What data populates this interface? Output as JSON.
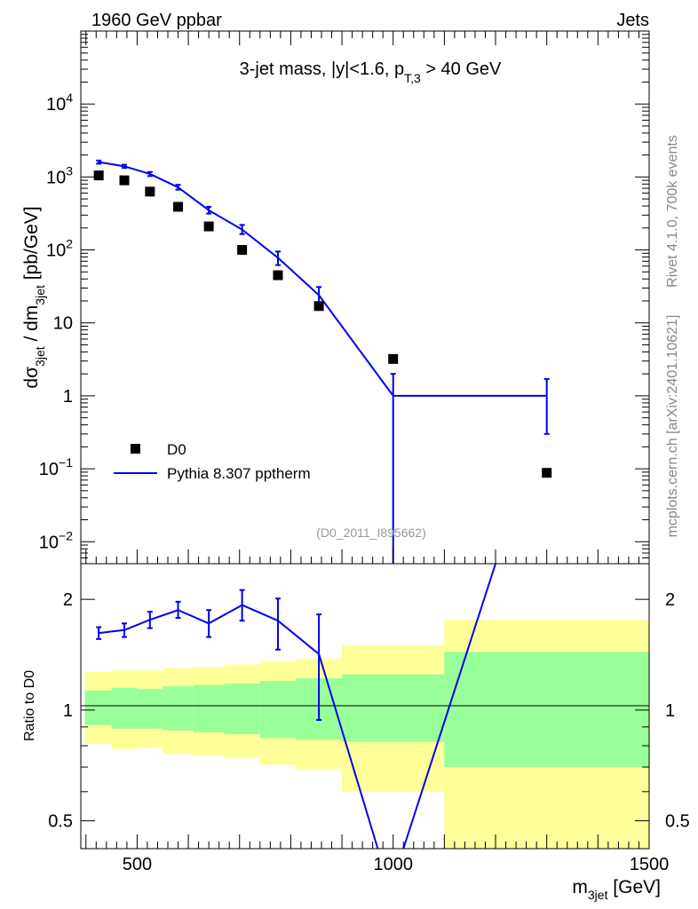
{
  "header": {
    "left": "1960 GeV ppbar",
    "right": "Jets"
  },
  "side_labels": {
    "rivet": "Rivet 4.1.0,  700k events",
    "mcplots": "mcplots.cern.ch [arXiv:2401.10621]"
  },
  "watermark": "(D0_2011_I895662)",
  "chart_data": [
    {
      "type": "scatter",
      "panel": "main",
      "title": "3-jet mass, |y|<1.6, p_T,3 > 40 GeV",
      "title_parts": {
        "prefix": "3-jet mass, |y|<1.6, p",
        "sub": "T,3",
        "suffix": " > 40 GeV"
      },
      "ylabel": "dσ_3jet / dm_3jet [pb/GeV]",
      "ylabel_parts": {
        "d1": "dσ",
        "s1": "3jet",
        "mid": " / dm",
        "s2": "3jet",
        "unit": " [pb/GeV]"
      },
      "yscale": "log",
      "ylim": [
        0.005,
        100000
      ],
      "xlim": [
        390,
        1500
      ],
      "y_ticks": [
        {
          "v": 0.01,
          "base": "10",
          "exp": "−2"
        },
        {
          "v": 0.1,
          "base": "10",
          "exp": "−1"
        },
        {
          "v": 1,
          "base": "1",
          "exp": ""
        },
        {
          "v": 10,
          "base": "10",
          "exp": ""
        },
        {
          "v": 100,
          "base": "10",
          "exp": "2"
        },
        {
          "v": 1000,
          "base": "10",
          "exp": "3"
        },
        {
          "v": 10000,
          "base": "10",
          "exp": "4"
        }
      ],
      "legend": {
        "position": "bottom-left",
        "entries": [
          "D0",
          "Pythia 8.307 pptherm"
        ]
      },
      "series": [
        {
          "name": "D0",
          "style": "marker",
          "color": "#000000",
          "points": [
            {
              "x": 425,
              "y": 1050
            },
            {
              "x": 475,
              "y": 900
            },
            {
              "x": 525,
              "y": 630
            },
            {
              "x": 580,
              "y": 390
            },
            {
              "x": 640,
              "y": 210
            },
            {
              "x": 705,
              "y": 100
            },
            {
              "x": 775,
              "y": 45
            },
            {
              "x": 855,
              "y": 17
            },
            {
              "x": 1000,
              "y": 3.2
            },
            {
              "x": 1300,
              "y": 0.088
            }
          ]
        },
        {
          "name": "Pythia 8.307 pptherm",
          "style": "line",
          "color": "#0000ee",
          "points": [
            {
              "x": 425,
              "y": 1600,
              "lo": 1520,
              "hi": 1680
            },
            {
              "x": 475,
              "y": 1400,
              "lo": 1330,
              "hi": 1470
            },
            {
              "x": 525,
              "y": 1100,
              "lo": 1030,
              "hi": 1170
            },
            {
              "x": 580,
              "y": 720,
              "lo": 670,
              "hi": 780
            },
            {
              "x": 640,
              "y": 350,
              "lo": 315,
              "hi": 390
            },
            {
              "x": 705,
              "y": 190,
              "lo": 165,
              "hi": 220
            },
            {
              "x": 775,
              "y": 78,
              "lo": 62,
              "hi": 95
            },
            {
              "x": 855,
              "y": 24,
              "lo": 17,
              "hi": 31
            },
            {
              "x": 1000,
              "y": 1,
              "lo": 0.001,
              "hi": 2.0
            },
            {
              "x": 1300,
              "y": 1,
              "lo": 0.3,
              "hi": 1.7
            }
          ],
          "segments": [
            {
              "x1": 425,
              "y1": 1600,
              "x2": 475,
              "y2": 1400
            },
            {
              "x1": 475,
              "y1": 1400,
              "x2": 525,
              "y2": 1100
            },
            {
              "x1": 525,
              "y1": 1100,
              "x2": 580,
              "y2": 720
            },
            {
              "x1": 580,
              "y1": 720,
              "x2": 640,
              "y2": 350
            },
            {
              "x1": 640,
              "y1": 350,
              "x2": 705,
              "y2": 190
            },
            {
              "x1": 705,
              "y1": 190,
              "x2": 775,
              "y2": 78
            },
            {
              "x1": 775,
              "y1": 78,
              "x2": 855,
              "y2": 24
            },
            {
              "x1": 855,
              "y1": 24,
              "x2": 1000,
              "y2": 1
            },
            {
              "x1": 1000,
              "y1": 1,
              "x2": 1300,
              "y2": 1
            }
          ]
        }
      ]
    },
    {
      "type": "line",
      "panel": "ratio",
      "ylabel": "Ratio to D0",
      "xlabel": "m_3jet [GeV]",
      "xlabel_parts": {
        "m": "m",
        "sub": "3jet",
        "unit": " [GeV]"
      },
      "yscale": "log",
      "ylim": [
        0.42,
        2.5
      ],
      "xlim": [
        390,
        1500
      ],
      "x_ticks": [
        {
          "v": 500,
          "label": "500"
        },
        {
          "v": 1000,
          "label": "1000"
        },
        {
          "v": 1500,
          "label": "1500"
        }
      ],
      "y_ticks": [
        {
          "v": 0.5,
          "label": "0.5"
        },
        {
          "v": 1,
          "label": "1"
        },
        {
          "v": 2,
          "label": "2"
        }
      ],
      "bands": [
        {
          "x1": 398,
          "x2": 450,
          "y_lo": 0.81,
          "y_hi": 1.27,
          "g_lo": 0.91,
          "g_hi": 1.13
        },
        {
          "x1": 450,
          "x2": 500,
          "y_lo": 0.78,
          "y_hi": 1.28,
          "g_lo": 0.89,
          "g_hi": 1.15
        },
        {
          "x1": 500,
          "x2": 550,
          "y_lo": 0.79,
          "y_hi": 1.28,
          "g_lo": 0.89,
          "g_hi": 1.14
        },
        {
          "x1": 550,
          "x2": 610,
          "y_lo": 0.76,
          "y_hi": 1.3,
          "g_lo": 0.88,
          "g_hi": 1.16
        },
        {
          "x1": 610,
          "x2": 670,
          "y_lo": 0.75,
          "y_hi": 1.31,
          "g_lo": 0.87,
          "g_hi": 1.17
        },
        {
          "x1": 670,
          "x2": 740,
          "y_lo": 0.74,
          "y_hi": 1.33,
          "g_lo": 0.86,
          "g_hi": 1.18
        },
        {
          "x1": 740,
          "x2": 810,
          "y_lo": 0.71,
          "y_hi": 1.36,
          "g_lo": 0.84,
          "g_hi": 1.2
        },
        {
          "x1": 810,
          "x2": 900,
          "y_lo": 0.69,
          "y_hi": 1.38,
          "g_lo": 0.83,
          "g_hi": 1.22
        },
        {
          "x1": 900,
          "x2": 1100,
          "y_lo": 0.6,
          "y_hi": 1.5,
          "g_lo": 0.82,
          "g_hi": 1.25
        },
        {
          "x1": 1100,
          "x2": 1500,
          "y_lo": 0.42,
          "y_hi": 1.76,
          "g_lo": 0.7,
          "g_hi": 1.44
        }
      ],
      "series": [
        {
          "name": "Pythia 8.307 pptherm / D0",
          "color": "#0000ee",
          "points": [
            {
              "x": 425,
              "y": 1.62,
              "lo": 1.56,
              "hi": 1.68
            },
            {
              "x": 475,
              "y": 1.65,
              "lo": 1.58,
              "hi": 1.72
            },
            {
              "x": 525,
              "y": 1.76,
              "lo": 1.67,
              "hi": 1.85
            },
            {
              "x": 580,
              "y": 1.87,
              "lo": 1.78,
              "hi": 1.97
            },
            {
              "x": 640,
              "y": 1.72,
              "lo": 1.58,
              "hi": 1.87
            },
            {
              "x": 705,
              "y": 1.93,
              "lo": 1.75,
              "hi": 2.12
            },
            {
              "x": 775,
              "y": 1.75,
              "lo": 1.46,
              "hi": 2.01
            },
            {
              "x": 855,
              "y": 1.42,
              "lo": 0.94,
              "hi": 1.82
            }
          ],
          "segments": [
            {
              "x1": 425,
              "y1": 1.62,
              "x2": 475,
              "y2": 1.65
            },
            {
              "x1": 475,
              "y1": 1.65,
              "x2": 525,
              "y2": 1.76
            },
            {
              "x1": 525,
              "y1": 1.76,
              "x2": 580,
              "y2": 1.87
            },
            {
              "x1": 580,
              "y1": 1.87,
              "x2": 640,
              "y2": 1.72
            },
            {
              "x1": 640,
              "y1": 1.72,
              "x2": 705,
              "y2": 1.93
            },
            {
              "x1": 705,
              "y1": 1.93,
              "x2": 775,
              "y2": 1.75
            },
            {
              "x1": 775,
              "y1": 1.75,
              "x2": 855,
              "y2": 1.42
            },
            {
              "x1": 855,
              "y1": 1.42,
              "x2": 970,
              "y2": 0.42
            },
            {
              "x1": 1020,
              "y1": 0.42,
              "x2": 1200,
              "y2": 2.5
            }
          ]
        }
      ]
    }
  ]
}
